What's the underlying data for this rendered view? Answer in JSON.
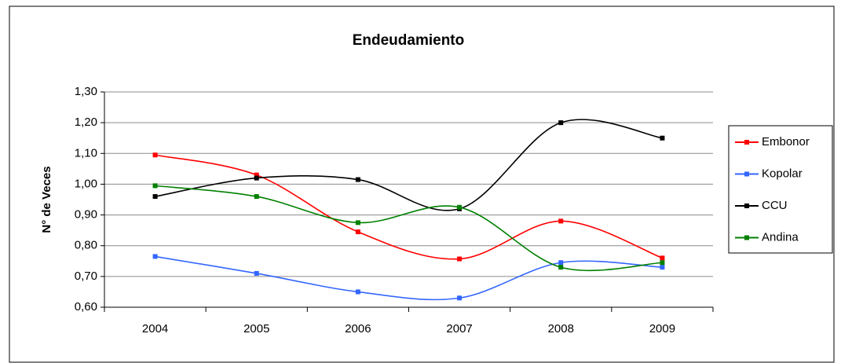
{
  "chart_data": {
    "type": "line",
    "title": "Endeudamiento",
    "y_label": "N° de Veces",
    "categories": [
      "2004",
      "2005",
      "2006",
      "2007",
      "2008",
      "2009"
    ],
    "series": [
      {
        "name": "Embonor",
        "color": "#ff0000",
        "values": [
          1.095,
          1.03,
          0.845,
          0.757,
          0.88,
          0.76
        ]
      },
      {
        "name": "Kopolar",
        "color": "#3366ff",
        "values": [
          0.765,
          0.71,
          0.65,
          0.63,
          0.745,
          0.73
        ]
      },
      {
        "name": "CCU",
        "color": "#000000",
        "values": [
          0.96,
          1.02,
          1.015,
          0.92,
          1.2,
          1.15
        ]
      },
      {
        "name": "Andina",
        "color": "#008000",
        "values": [
          0.995,
          0.96,
          0.875,
          0.925,
          0.73,
          0.745
        ]
      }
    ],
    "ylim": [
      0.6,
      1.3
    ],
    "yticks": [
      {
        "value": 0.6,
        "label": "0,60"
      },
      {
        "value": 0.7,
        "label": "0,70"
      },
      {
        "value": 0.8,
        "label": "0,80"
      },
      {
        "value": 0.9,
        "label": "0,90"
      },
      {
        "value": 1.0,
        "label": "1,00"
      },
      {
        "value": 1.1,
        "label": "1,10"
      },
      {
        "value": 1.2,
        "label": "1,20"
      },
      {
        "value": 1.3,
        "label": "1,30"
      }
    ],
    "grid": true,
    "legend": "right",
    "smooth": true
  }
}
